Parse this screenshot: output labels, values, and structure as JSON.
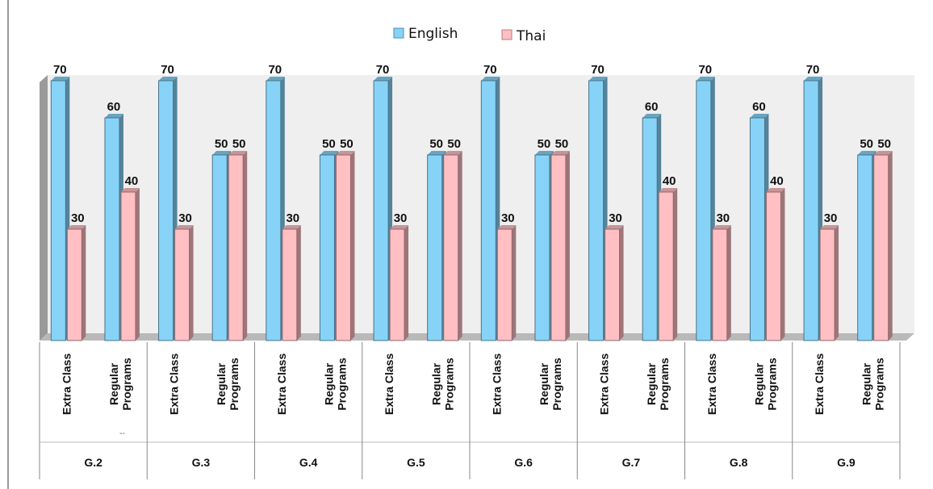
{
  "chart_data": {
    "type": "bar",
    "groups": [
      "G.2",
      "G.3",
      "G.4",
      "G.5",
      "G.6",
      "G.7",
      "G.8",
      "G.9"
    ],
    "subcategories": [
      "Extra Class",
      "Regular Programs"
    ],
    "series": [
      {
        "name": "English",
        "color": "#87d3f8",
        "values": [
          70,
          60,
          70,
          50,
          70,
          50,
          70,
          50,
          70,
          50,
          70,
          60,
          70,
          60,
          70,
          50
        ]
      },
      {
        "name": "Thai",
        "color": "#ffbfc3",
        "values": [
          30,
          40,
          30,
          50,
          30,
          50,
          30,
          50,
          30,
          50,
          30,
          40,
          30,
          40,
          30,
          50
        ]
      }
    ],
    "ylim": [
      0,
      70
    ],
    "legend_position": "top-center",
    "grid": false,
    "style": "3d-column"
  },
  "legend": {
    "english_label": "English",
    "thai_label": "Thai"
  },
  "mark": "--"
}
